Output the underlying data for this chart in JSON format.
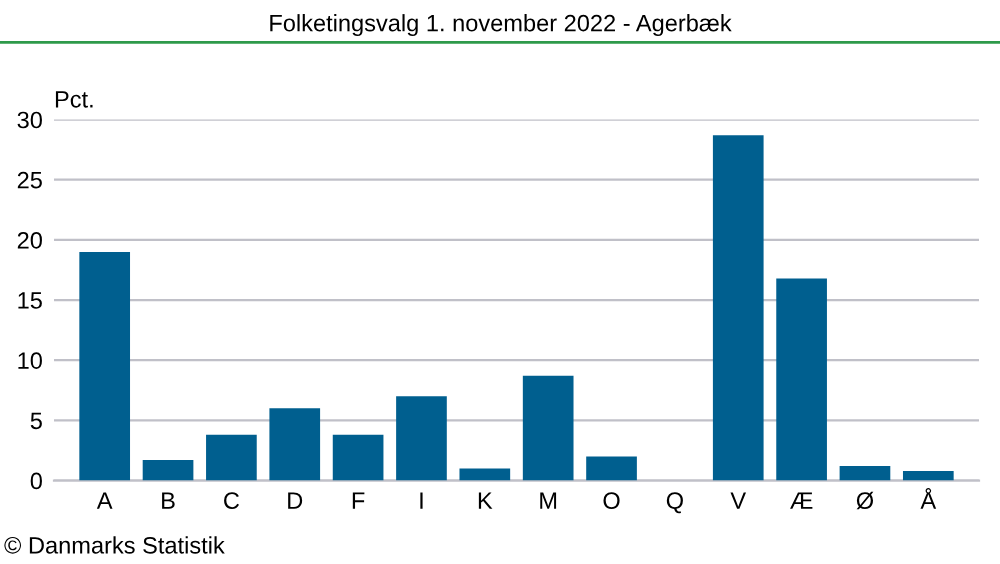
{
  "chart_data": {
    "type": "bar",
    "title": "Folketingsvalg 1. november 2022 - Agerbæk",
    "ylabel": "Pct.",
    "categories": [
      "A",
      "B",
      "C",
      "D",
      "F",
      "I",
      "K",
      "M",
      "O",
      "Q",
      "V",
      "Æ",
      "Ø",
      "Å"
    ],
    "values": [
      19.0,
      1.7,
      3.8,
      6.0,
      3.8,
      7.0,
      1.0,
      8.7,
      2.0,
      0,
      28.7,
      16.8,
      1.2,
      0.8
    ],
    "color": "#005f8f",
    "ylim": [
      0,
      30
    ],
    "yticks": [
      0,
      5,
      10,
      15,
      20,
      25,
      30
    ],
    "grid": "y",
    "annotations": [
      "© Danmarks Statistik"
    ]
  }
}
